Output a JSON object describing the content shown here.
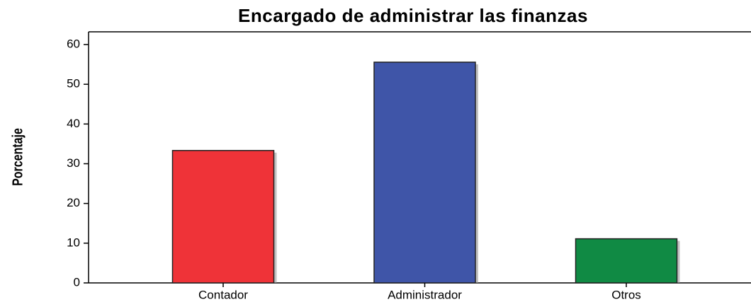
{
  "chart_data": {
    "type": "bar",
    "title": "Encargado de administrar las finanzas",
    "y_label": "Porcentaje",
    "categories": [
      "Contador",
      "Administrador",
      "Otros"
    ],
    "values": [
      33.33,
      55.56,
      11.11
    ],
    "colors": [
      "#ef3338",
      "#3f55a8",
      "#108a44"
    ],
    "ylim": [
      0,
      63.2
    ],
    "yticks": [
      0,
      10,
      20,
      30,
      40,
      50,
      60
    ],
    "grid": false
  }
}
